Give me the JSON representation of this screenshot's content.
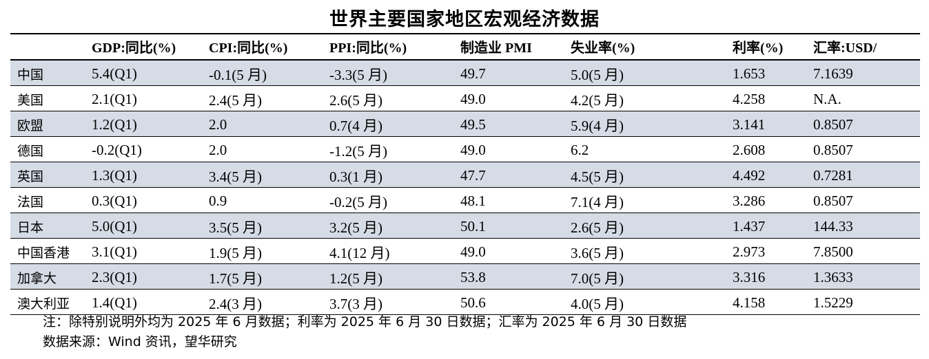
{
  "title": "世界主要国家地区宏观经济数据",
  "headers": [
    "",
    "GDP:同比(%)",
    "CPI:同比(%)",
    "PPI:同比(%)",
    "制造业 PMI",
    "失业率(%)",
    "利率(%)",
    "汇率:USD/"
  ],
  "rows": [
    [
      "中国",
      "5.4(Q1)",
      "-0.1(5 月)",
      "-3.3(5 月)",
      "49.7",
      "5.0(5 月)",
      "1.653",
      "7.1639"
    ],
    [
      "美国",
      "2.1(Q1)",
      "2.4(5 月)",
      "2.6(5 月)",
      "49.0",
      "4.2(5 月)",
      "4.258",
      "N.A."
    ],
    [
      "欧盟",
      "1.2(Q1)",
      "2.0",
      "0.7(4 月)",
      "49.5",
      "5.9(4 月)",
      "3.141",
      "0.8507"
    ],
    [
      "德国",
      "-0.2(Q1)",
      "2.0",
      "-1.2(5 月)",
      "49.0",
      "6.2",
      "2.608",
      "0.8507"
    ],
    [
      "英国",
      "1.3(Q1)",
      "3.4(5 月)",
      "0.3(1 月)",
      "47.7",
      "4.5(5 月)",
      "4.492",
      "0.7281"
    ],
    [
      "法国",
      "0.3(Q1)",
      "0.9",
      "-0.2(5 月)",
      "48.1",
      "7.1(4 月)",
      "3.286",
      "0.8507"
    ],
    [
      "日本",
      "5.0(Q1)",
      "3.5(5 月)",
      "3.2(5 月)",
      "50.1",
      "2.6(5 月)",
      "1.437",
      "144.33"
    ],
    [
      "中国香港",
      "3.1(Q1)",
      "1.9(5 月)",
      "4.1(12 月)",
      "49.0",
      "3.6(5 月)",
      "2.973",
      "7.8500"
    ],
    [
      "加拿大",
      "2.3(Q1)",
      "1.7(5 月)",
      "1.2(5 月)",
      "53.8",
      "7.0(5 月)",
      "3.316",
      "1.3633"
    ],
    [
      "澳大利亚",
      "1.4(Q1)",
      "2.4(3 月)",
      "3.7(3 月)",
      "50.6",
      "4.0(5 月)",
      "4.158",
      "1.5229"
    ]
  ],
  "notes": {
    "note": "注：除特别说明外均为 2025 年 6 月数据；利率为 2025 年 6 月 30 日数据；汇率为 2025 年 6 月 30 日数据",
    "source": "数据来源：Wind 资讯，望华研究"
  },
  "colors": {
    "stripe": "#d6dce6",
    "rule": "#000000",
    "text": "#000000"
  }
}
